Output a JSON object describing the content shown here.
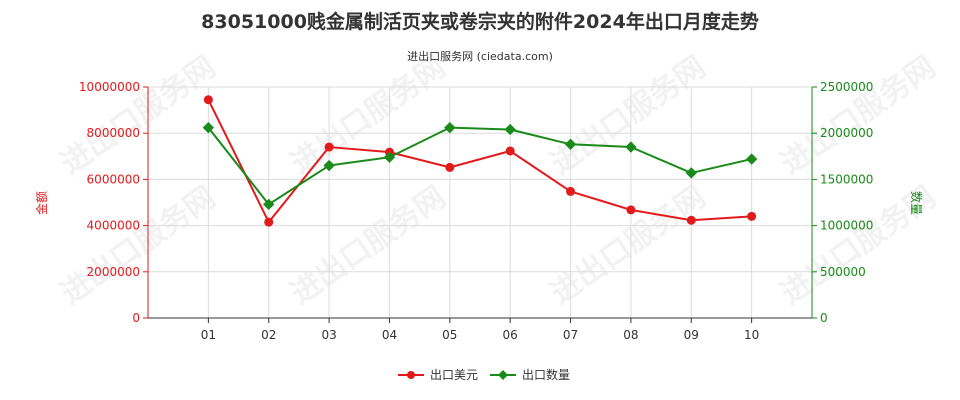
{
  "chart_data": {
    "type": "line",
    "title": "83051000贱金属制活页夹或卷宗夹的附件2024年出口月度走势",
    "subtitle": "进出口服务网 (ciedata.com)",
    "categories": [
      "01",
      "02",
      "03",
      "04",
      "05",
      "06",
      "07",
      "08",
      "09",
      "10"
    ],
    "series": [
      {
        "name": "出口美元",
        "axis": "left",
        "color": "#e31a1c",
        "values": [
          9450000,
          4150000,
          7400000,
          7180000,
          6520000,
          7230000,
          5480000,
          4680000,
          4230000,
          4400000
        ]
      },
      {
        "name": "出口数量",
        "axis": "right",
        "color": "#1a8a1a",
        "values": [
          2060000,
          1230000,
          1650000,
          1740000,
          2060000,
          2040000,
          1880000,
          1850000,
          1570000,
          1720000
        ]
      }
    ],
    "y_left": {
      "label": "金额",
      "min": 0,
      "max": 10000000,
      "ticks": [
        "0",
        "2000000",
        "4000000",
        "6000000",
        "8000000",
        "10000000"
      ],
      "color": "#e31a1c"
    },
    "y_right": {
      "label": "数量",
      "min": 0,
      "max": 2500000,
      "ticks": [
        "0",
        "500000",
        "1000000",
        "1500000",
        "2000000",
        "2500000"
      ],
      "color": "#1a8a1a"
    },
    "grid": true,
    "legend": "bottom-center",
    "watermark": "进出口服务网"
  }
}
